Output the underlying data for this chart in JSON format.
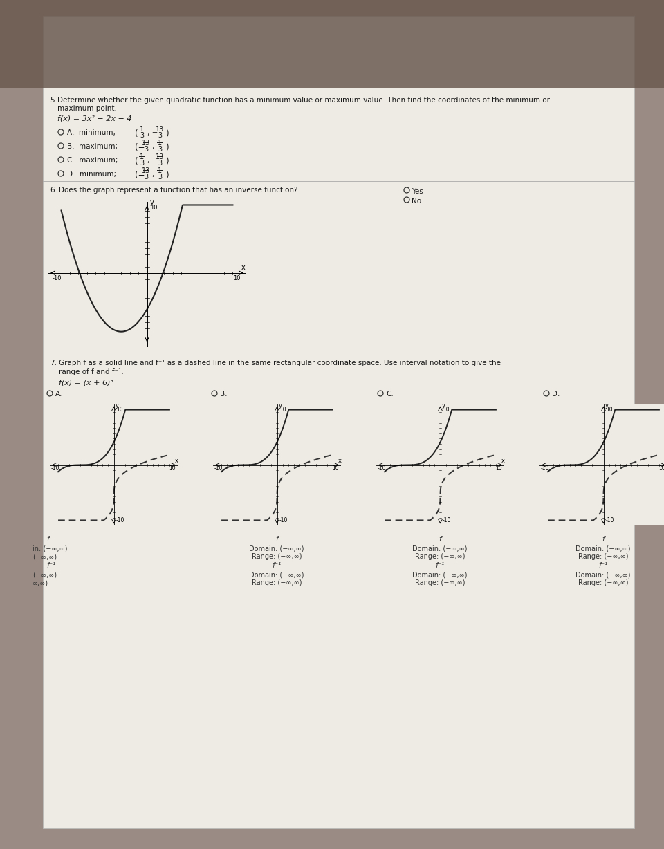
{
  "bg_top_color": "#8a7a70",
  "bg_bottom_color": "#c8c0b8",
  "paper_color": "#f0ece6",
  "text_color": "#1a1a1a",
  "line_color": "#222222",
  "q5_number": "5",
  "q5_line1": "Determine whether the given quadratic function has a minimum value or maximum value. Then find the coordinates of the minimum or",
  "q5_line2": "maximum point.",
  "q5_func": "f(x) = 3x² − 2x − 4",
  "q5_optA_label": "A.  minimum;",
  "q5_optB_label": "B.  maximum;",
  "q5_optC_label": "C.  maximum;",
  "q5_optD_label": "D.  minimum;",
  "q6_number": "6",
  "q6_text": "Does the graph represent a function that has an inverse function?",
  "q6_yes": "Yes",
  "q6_no": "No",
  "q7_number": "7",
  "q7_line1": "Graph f as a solid line and f⁻¹ as a dashed line in the same rectangular coordinate space. Use interval notation to give the",
  "q7_line2": "range of f and f⁻¹.",
  "q7_func": "f(x) = (x + 6)³",
  "inf_str": "(−∞,∞)",
  "subplot_labels": [
    "A.",
    "B.",
    "C.",
    "D."
  ]
}
